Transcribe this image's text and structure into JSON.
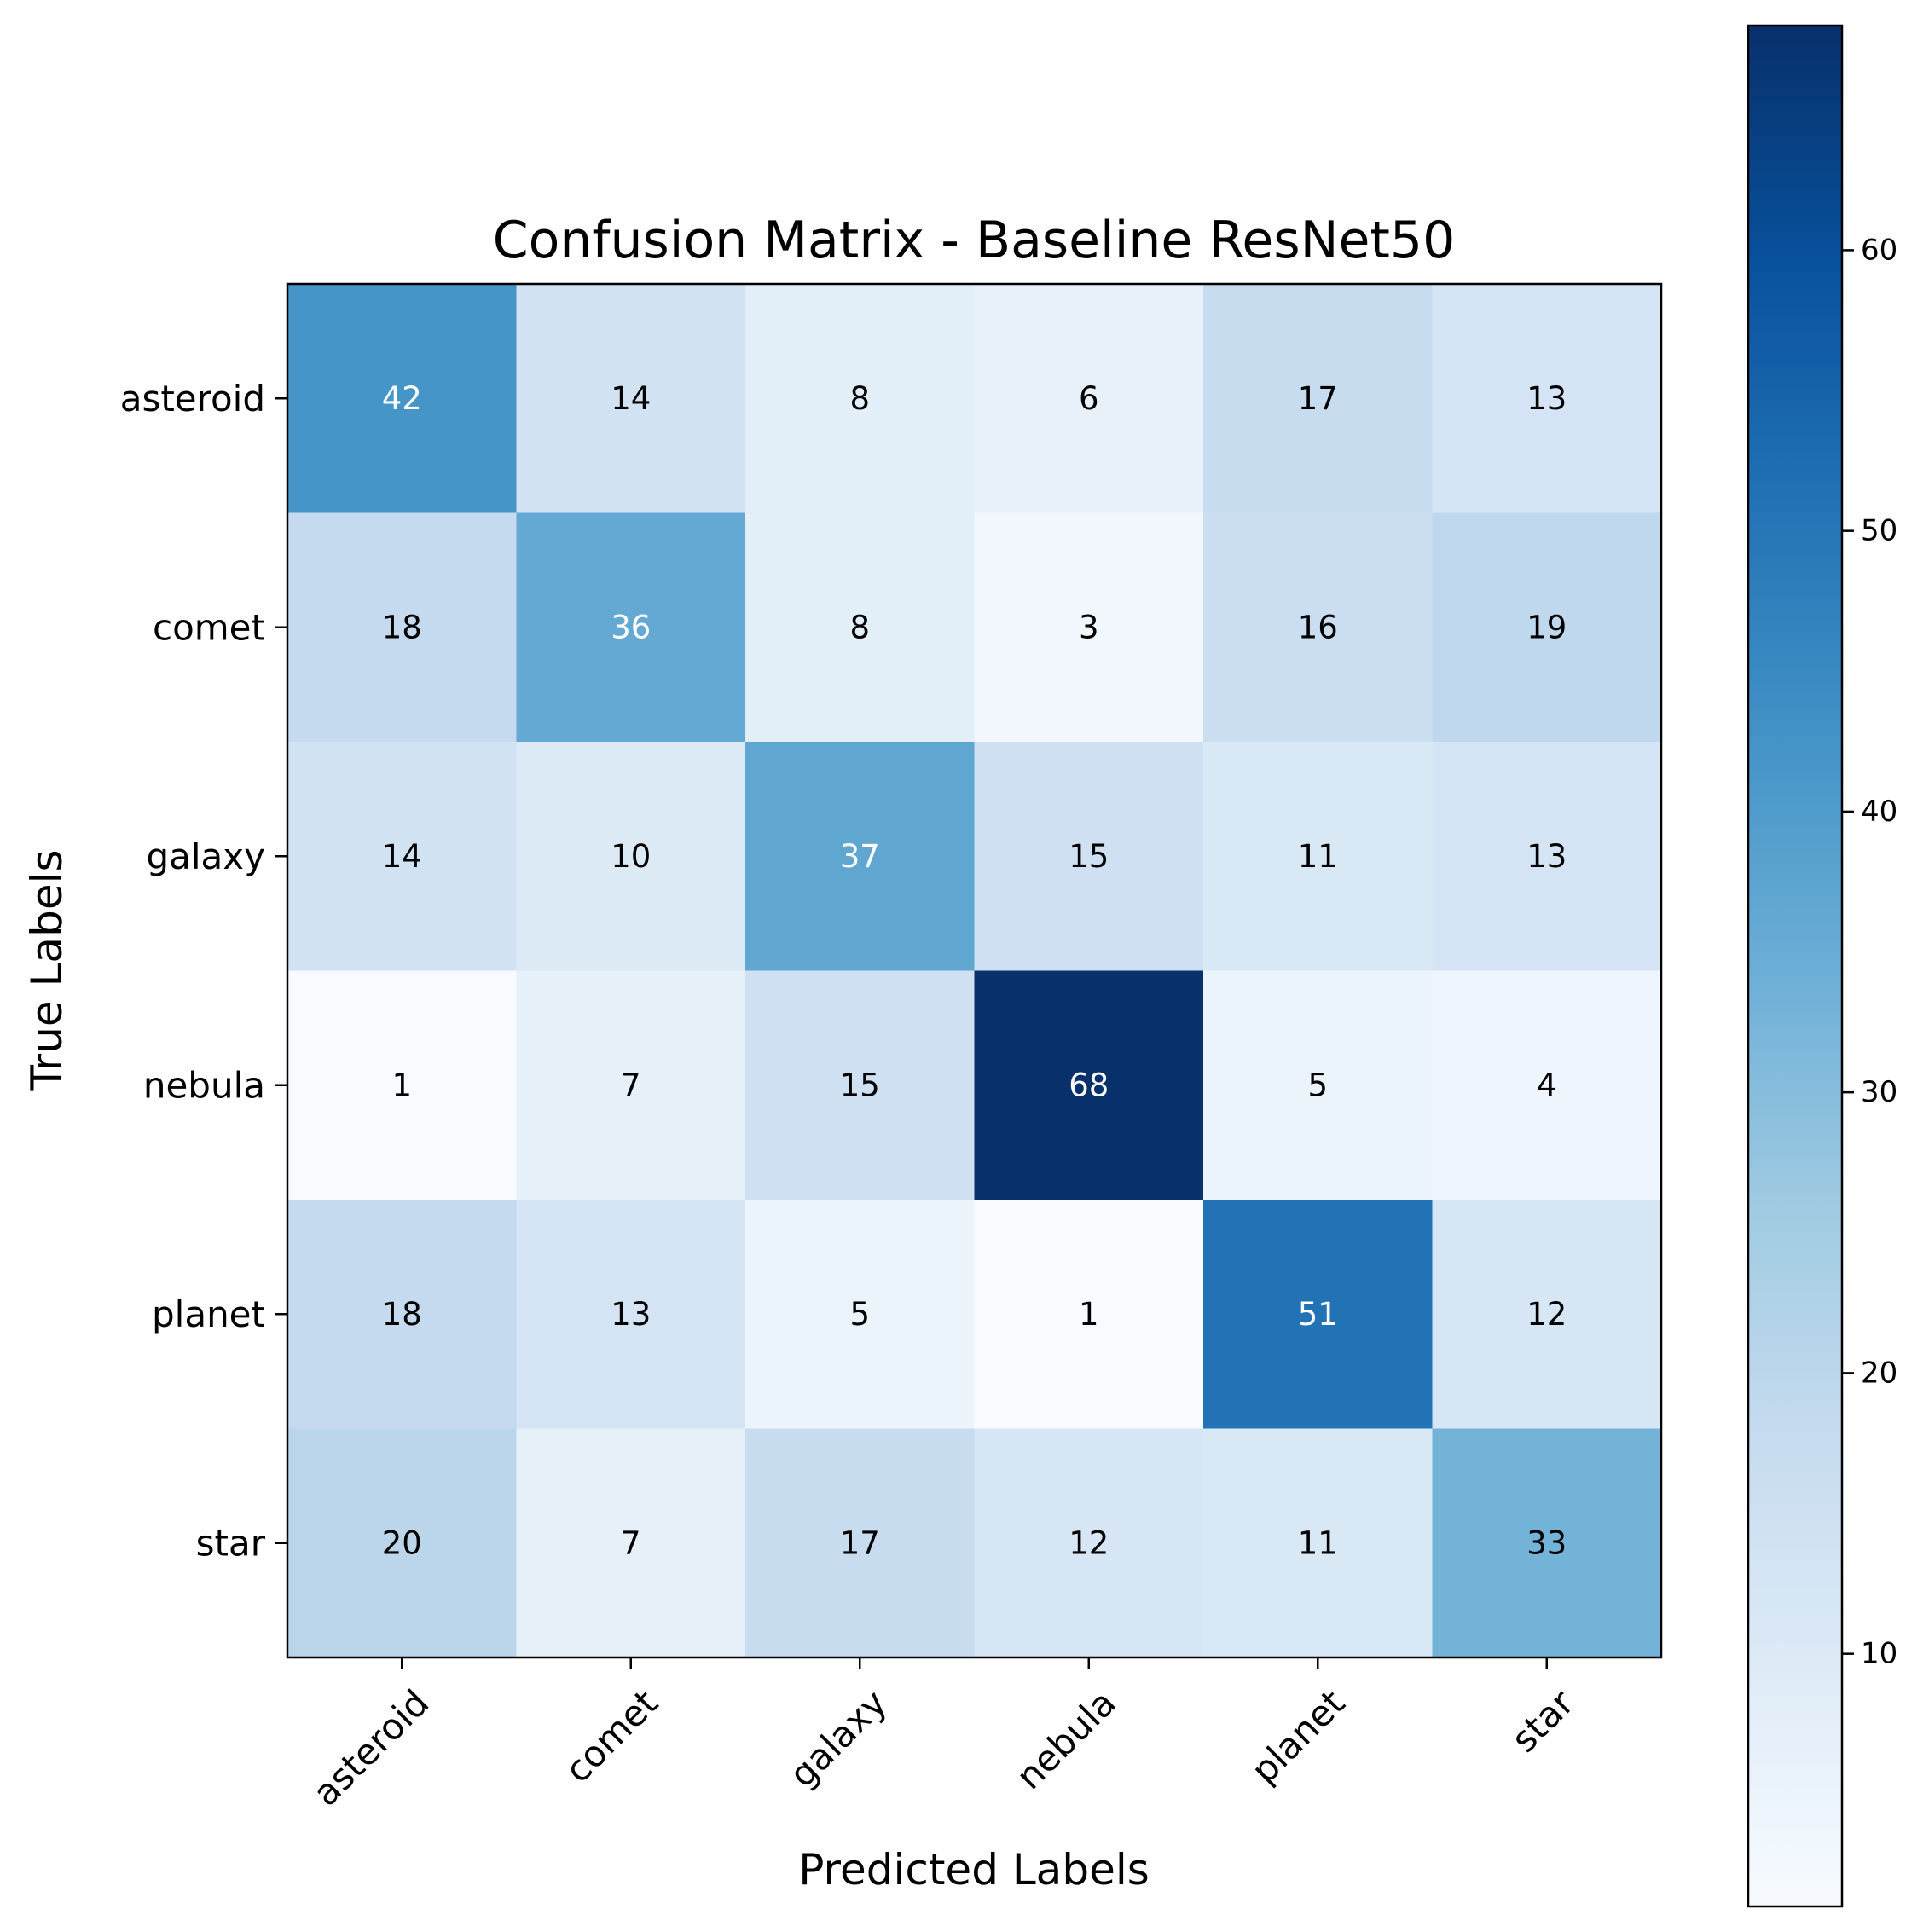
{
  "chart_data": {
    "type": "heatmap",
    "title": "Confusion Matrix - Baseline ResNet50",
    "xlabel": "Predicted Labels",
    "ylabel": "True Labels",
    "x_categories": [
      "asteroid",
      "comet",
      "galaxy",
      "nebula",
      "planet",
      "star"
    ],
    "y_categories": [
      "asteroid",
      "comet",
      "galaxy",
      "nebula",
      "planet",
      "star"
    ],
    "values": [
      [
        42,
        14,
        8,
        6,
        17,
        13
      ],
      [
        18,
        36,
        8,
        3,
        16,
        19
      ],
      [
        14,
        10,
        37,
        15,
        11,
        13
      ],
      [
        1,
        7,
        15,
        68,
        5,
        4
      ],
      [
        18,
        13,
        5,
        1,
        51,
        12
      ],
      [
        20,
        7,
        17,
        12,
        11,
        33
      ]
    ],
    "colormap": "Blues",
    "color_range": [
      1,
      68
    ],
    "colorbar_ticks": [
      10,
      20,
      30,
      40,
      50,
      60
    ],
    "x_tick_rotation_deg": 45,
    "grid": false,
    "colorbar_placement": "right"
  }
}
